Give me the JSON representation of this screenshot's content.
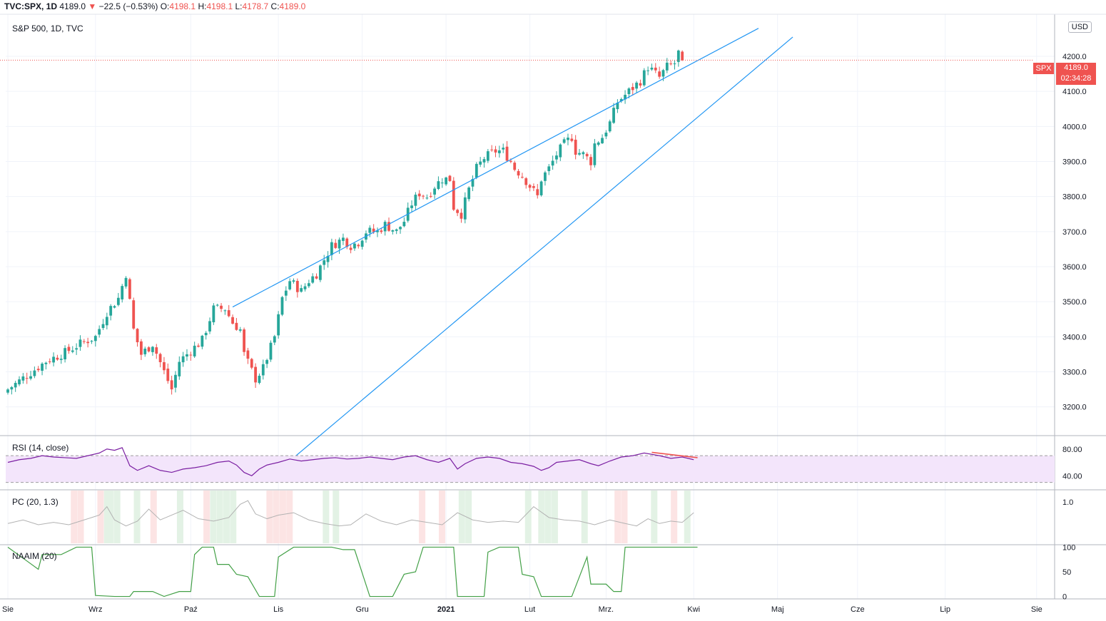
{
  "header": {
    "symbol": "TVC:SPX, 1D",
    "last": "4189.0",
    "arrow": "▼",
    "change": "−22.5 (−0.53%)",
    "o_label": "O:",
    "o": "4198.1",
    "h_label": "H:",
    "h": "4198.1",
    "l_label": "L:",
    "l": "4178.7",
    "c_label": "C:",
    "c": "4189.0"
  },
  "main": {
    "subtitle": "S&P 500, 1D, TVC",
    "currency_button": "USD",
    "spx_tag": "SPX",
    "price_tag": "4189.0",
    "countdown": "02:34:28"
  },
  "panes": {
    "rsi_label": "RSI (14, close)",
    "pc_label": "PC (20, 1.3)",
    "naaim_label": "NAAIM (20)"
  },
  "colors": {
    "up": "#26a69a",
    "down": "#ef5350",
    "trendline": "#2196f3",
    "rsi": "#7b1fa2",
    "rsi_band": "#f3e5fb",
    "naaim": "#43a047",
    "pc": "#b2b2b2"
  },
  "chart_data": [
    {
      "type": "candlestick",
      "title": "S&P 500, 1D, TVC",
      "x_tick_labels": [
        "Sie",
        "Wrz",
        "Paź",
        "Lis",
        "Gru",
        "2021",
        "Lut",
        "Mrz.",
        "Kwi",
        "Maj",
        "Cze",
        "Lip",
        "Sie"
      ],
      "y_tick_labels": [
        "4200.0",
        "4100.0",
        "4000.0",
        "3900.0",
        "3800.0",
        "3700.0",
        "3600.0",
        "3500.0",
        "3400.0",
        "3300.0",
        "3200.0"
      ],
      "ylim": [
        3120,
        4320
      ],
      "last_price": 4189.0,
      "close_path": [
        [
          0,
          3250
        ],
        [
          5,
          3290
        ],
        [
          10,
          3330
        ],
        [
          15,
          3355
        ],
        [
          19,
          3380
        ],
        [
          23,
          3400
        ],
        [
          26,
          3470
        ],
        [
          29,
          3510
        ],
        [
          31,
          3580
        ],
        [
          32,
          3500
        ],
        [
          33,
          3420
        ],
        [
          35,
          3350
        ],
        [
          38,
          3380
        ],
        [
          41,
          3300
        ],
        [
          43,
          3250
        ],
        [
          45,
          3330
        ],
        [
          48,
          3360
        ],
        [
          51,
          3390
        ],
        [
          54,
          3480
        ],
        [
          57,
          3480
        ],
        [
          59,
          3440
        ],
        [
          61,
          3420
        ],
        [
          62,
          3350
        ],
        [
          65,
          3280
        ],
        [
          67,
          3310
        ],
        [
          70,
          3400
        ],
        [
          72,
          3510
        ],
        [
          74,
          3560
        ],
        [
          77,
          3530
        ],
        [
          79,
          3560
        ],
        [
          81,
          3580
        ],
        [
          83,
          3620
        ],
        [
          85,
          3660
        ],
        [
          88,
          3680
        ],
        [
          90,
          3660
        ],
        [
          92,
          3670
        ],
        [
          94,
          3700
        ],
        [
          97,
          3700
        ],
        [
          99,
          3720
        ],
        [
          102,
          3700
        ],
        [
          104,
          3730
        ],
        [
          106,
          3780
        ],
        [
          108,
          3810
        ],
        [
          110,
          3800
        ],
        [
          112,
          3830
        ],
        [
          114,
          3850
        ],
        [
          116,
          3850
        ],
        [
          117,
          3770
        ],
        [
          119,
          3750
        ],
        [
          121,
          3820
        ],
        [
          123,
          3880
        ],
        [
          125,
          3910
        ],
        [
          128,
          3930
        ],
        [
          130,
          3930
        ],
        [
          132,
          3900
        ],
        [
          133,
          3880
        ],
        [
          135,
          3860
        ],
        [
          137,
          3830
        ],
        [
          139,
          3800
        ],
        [
          140,
          3850
        ],
        [
          142,
          3880
        ],
        [
          144,
          3920
        ],
        [
          146,
          3950
        ],
        [
          148,
          3970
        ],
        [
          149,
          3930
        ],
        [
          151,
          3920
        ],
        [
          153,
          3900
        ],
        [
          154,
          3950
        ],
        [
          156,
          3970
        ],
        [
          158,
          4010
        ],
        [
          160,
          4070
        ],
        [
          162,
          4090
        ],
        [
          164,
          4110
        ],
        [
          166,
          4130
        ],
        [
          168,
          4170
        ],
        [
          169,
          4160
        ],
        [
          171,
          4140
        ],
        [
          173,
          4170
        ],
        [
          175,
          4180
        ],
        [
          176,
          4210
        ],
        [
          177,
          4189
        ]
      ],
      "trendlines": [
        {
          "from": [
            59,
            3485
          ],
          "to": [
            197,
            4280
          ]
        },
        {
          "from": [
            69,
            3000
          ],
          "to": [
            206,
            4255
          ]
        }
      ]
    },
    {
      "type": "line",
      "title": "RSI (14, close)",
      "y_tick_labels": [
        "80.00",
        "40.00"
      ],
      "ylim": [
        20,
        100
      ],
      "band": [
        30,
        70
      ],
      "divergence_line": {
        "from": [
          169,
          75
        ],
        "to": [
          181,
          67
        ]
      },
      "values": [
        [
          0,
          60
        ],
        [
          3,
          64
        ],
        [
          6,
          66
        ],
        [
          9,
          70
        ],
        [
          12,
          68
        ],
        [
          15,
          67
        ],
        [
          18,
          66
        ],
        [
          21,
          70
        ],
        [
          24,
          74
        ],
        [
          26,
          80
        ],
        [
          28,
          78
        ],
        [
          30,
          82
        ],
        [
          32,
          55
        ],
        [
          34,
          48
        ],
        [
          37,
          55
        ],
        [
          40,
          48
        ],
        [
          43,
          45
        ],
        [
          46,
          50
        ],
        [
          49,
          52
        ],
        [
          52,
          55
        ],
        [
          55,
          60
        ],
        [
          58,
          62
        ],
        [
          60,
          56
        ],
        [
          62,
          45
        ],
        [
          64,
          40
        ],
        [
          66,
          50
        ],
        [
          68,
          56
        ],
        [
          71,
          60
        ],
        [
          74,
          65
        ],
        [
          77,
          62
        ],
        [
          80,
          64
        ],
        [
          83,
          66
        ],
        [
          86,
          67
        ],
        [
          89,
          65
        ],
        [
          92,
          66
        ],
        [
          95,
          68
        ],
        [
          98,
          66
        ],
        [
          101,
          64
        ],
        [
          104,
          68
        ],
        [
          107,
          70
        ],
        [
          110,
          64
        ],
        [
          113,
          60
        ],
        [
          116,
          66
        ],
        [
          118,
          50
        ],
        [
          120,
          58
        ],
        [
          123,
          66
        ],
        [
          126,
          68
        ],
        [
          129,
          66
        ],
        [
          132,
          60
        ],
        [
          135,
          58
        ],
        [
          138,
          54
        ],
        [
          140,
          48
        ],
        [
          142,
          52
        ],
        [
          144,
          60
        ],
        [
          147,
          62
        ],
        [
          150,
          64
        ],
        [
          153,
          58
        ],
        [
          155,
          55
        ],
        [
          158,
          62
        ],
        [
          161,
          68
        ],
        [
          164,
          70
        ],
        [
          167,
          74
        ],
        [
          169,
          72
        ],
        [
          171,
          70
        ],
        [
          174,
          66
        ],
        [
          177,
          68
        ],
        [
          180,
          64
        ]
      ]
    },
    {
      "type": "line",
      "title": "PC (20, 1.3)",
      "y_tick_labels": [
        "1.0"
      ],
      "ylim": [
        0.3,
        1.2
      ],
      "values": [
        [
          0,
          0.64
        ],
        [
          4,
          0.7
        ],
        [
          8,
          0.62
        ],
        [
          12,
          0.66
        ],
        [
          16,
          0.62
        ],
        [
          20,
          0.7
        ],
        [
          24,
          0.78
        ],
        [
          26,
          0.92
        ],
        [
          28,
          0.7
        ],
        [
          31,
          0.6
        ],
        [
          34,
          0.68
        ],
        [
          37,
          0.88
        ],
        [
          40,
          0.7
        ],
        [
          43,
          0.78
        ],
        [
          46,
          0.86
        ],
        [
          50,
          0.72
        ],
        [
          54,
          0.68
        ],
        [
          58,
          0.74
        ],
        [
          61,
          0.96
        ],
        [
          63,
          1.02
        ],
        [
          65,
          0.8
        ],
        [
          68,
          0.72
        ],
        [
          71,
          0.78
        ],
        [
          75,
          0.82
        ],
        [
          79,
          0.7
        ],
        [
          83,
          0.64
        ],
        [
          87,
          0.6
        ],
        [
          90,
          0.62
        ],
        [
          94,
          0.8
        ],
        [
          98,
          0.68
        ],
        [
          102,
          0.62
        ],
        [
          106,
          0.7
        ],
        [
          110,
          0.66
        ],
        [
          114,
          0.62
        ],
        [
          118,
          0.82
        ],
        [
          122,
          0.7
        ],
        [
          126,
          0.66
        ],
        [
          130,
          0.68
        ],
        [
          134,
          0.66
        ],
        [
          138,
          0.92
        ],
        [
          142,
          0.74
        ],
        [
          146,
          0.7
        ],
        [
          150,
          0.68
        ],
        [
          154,
          0.62
        ],
        [
          158,
          0.7
        ],
        [
          162,
          0.64
        ],
        [
          165,
          0.6
        ],
        [
          168,
          0.72
        ],
        [
          171,
          0.64
        ],
        [
          174,
          0.68
        ],
        [
          177,
          0.66
        ],
        [
          180,
          0.82
        ]
      ]
    },
    {
      "type": "line",
      "title": "NAAIM (20)",
      "y_tick_labels": [
        "100",
        "50",
        "0"
      ],
      "ylim": [
        -5,
        105
      ],
      "values": [
        [
          0,
          100
        ],
        [
          5,
          72
        ],
        [
          8,
          55
        ],
        [
          9,
          85
        ],
        [
          14,
          85
        ],
        [
          18,
          100
        ],
        [
          22,
          100
        ],
        [
          23,
          2
        ],
        [
          28,
          0
        ],
        [
          32,
          0
        ],
        [
          33,
          10
        ],
        [
          38,
          10
        ],
        [
          41,
          0
        ],
        [
          45,
          10
        ],
        [
          48,
          10
        ],
        [
          49,
          85
        ],
        [
          51,
          100
        ],
        [
          54,
          100
        ],
        [
          55,
          65
        ],
        [
          58,
          65
        ],
        [
          60,
          45
        ],
        [
          63,
          40
        ],
        [
          66,
          0
        ],
        [
          70,
          0
        ],
        [
          71,
          80
        ],
        [
          75,
          100
        ],
        [
          85,
          100
        ],
        [
          88,
          95
        ],
        [
          91,
          95
        ],
        [
          95,
          0
        ],
        [
          101,
          0
        ],
        [
          104,
          45
        ],
        [
          107,
          50
        ],
        [
          109,
          100
        ],
        [
          117,
          100
        ],
        [
          118,
          0
        ],
        [
          125,
          0
        ],
        [
          126,
          90
        ],
        [
          129,
          100
        ],
        [
          134,
          100
        ],
        [
          135,
          45
        ],
        [
          138,
          40
        ],
        [
          140,
          0
        ],
        [
          148,
          0
        ],
        [
          150,
          40
        ],
        [
          152,
          80
        ],
        [
          153,
          25
        ],
        [
          157,
          25
        ],
        [
          159,
          10
        ],
        [
          161,
          10
        ],
        [
          162,
          100
        ],
        [
          175,
          100
        ],
        [
          181,
          100
        ]
      ]
    }
  ]
}
